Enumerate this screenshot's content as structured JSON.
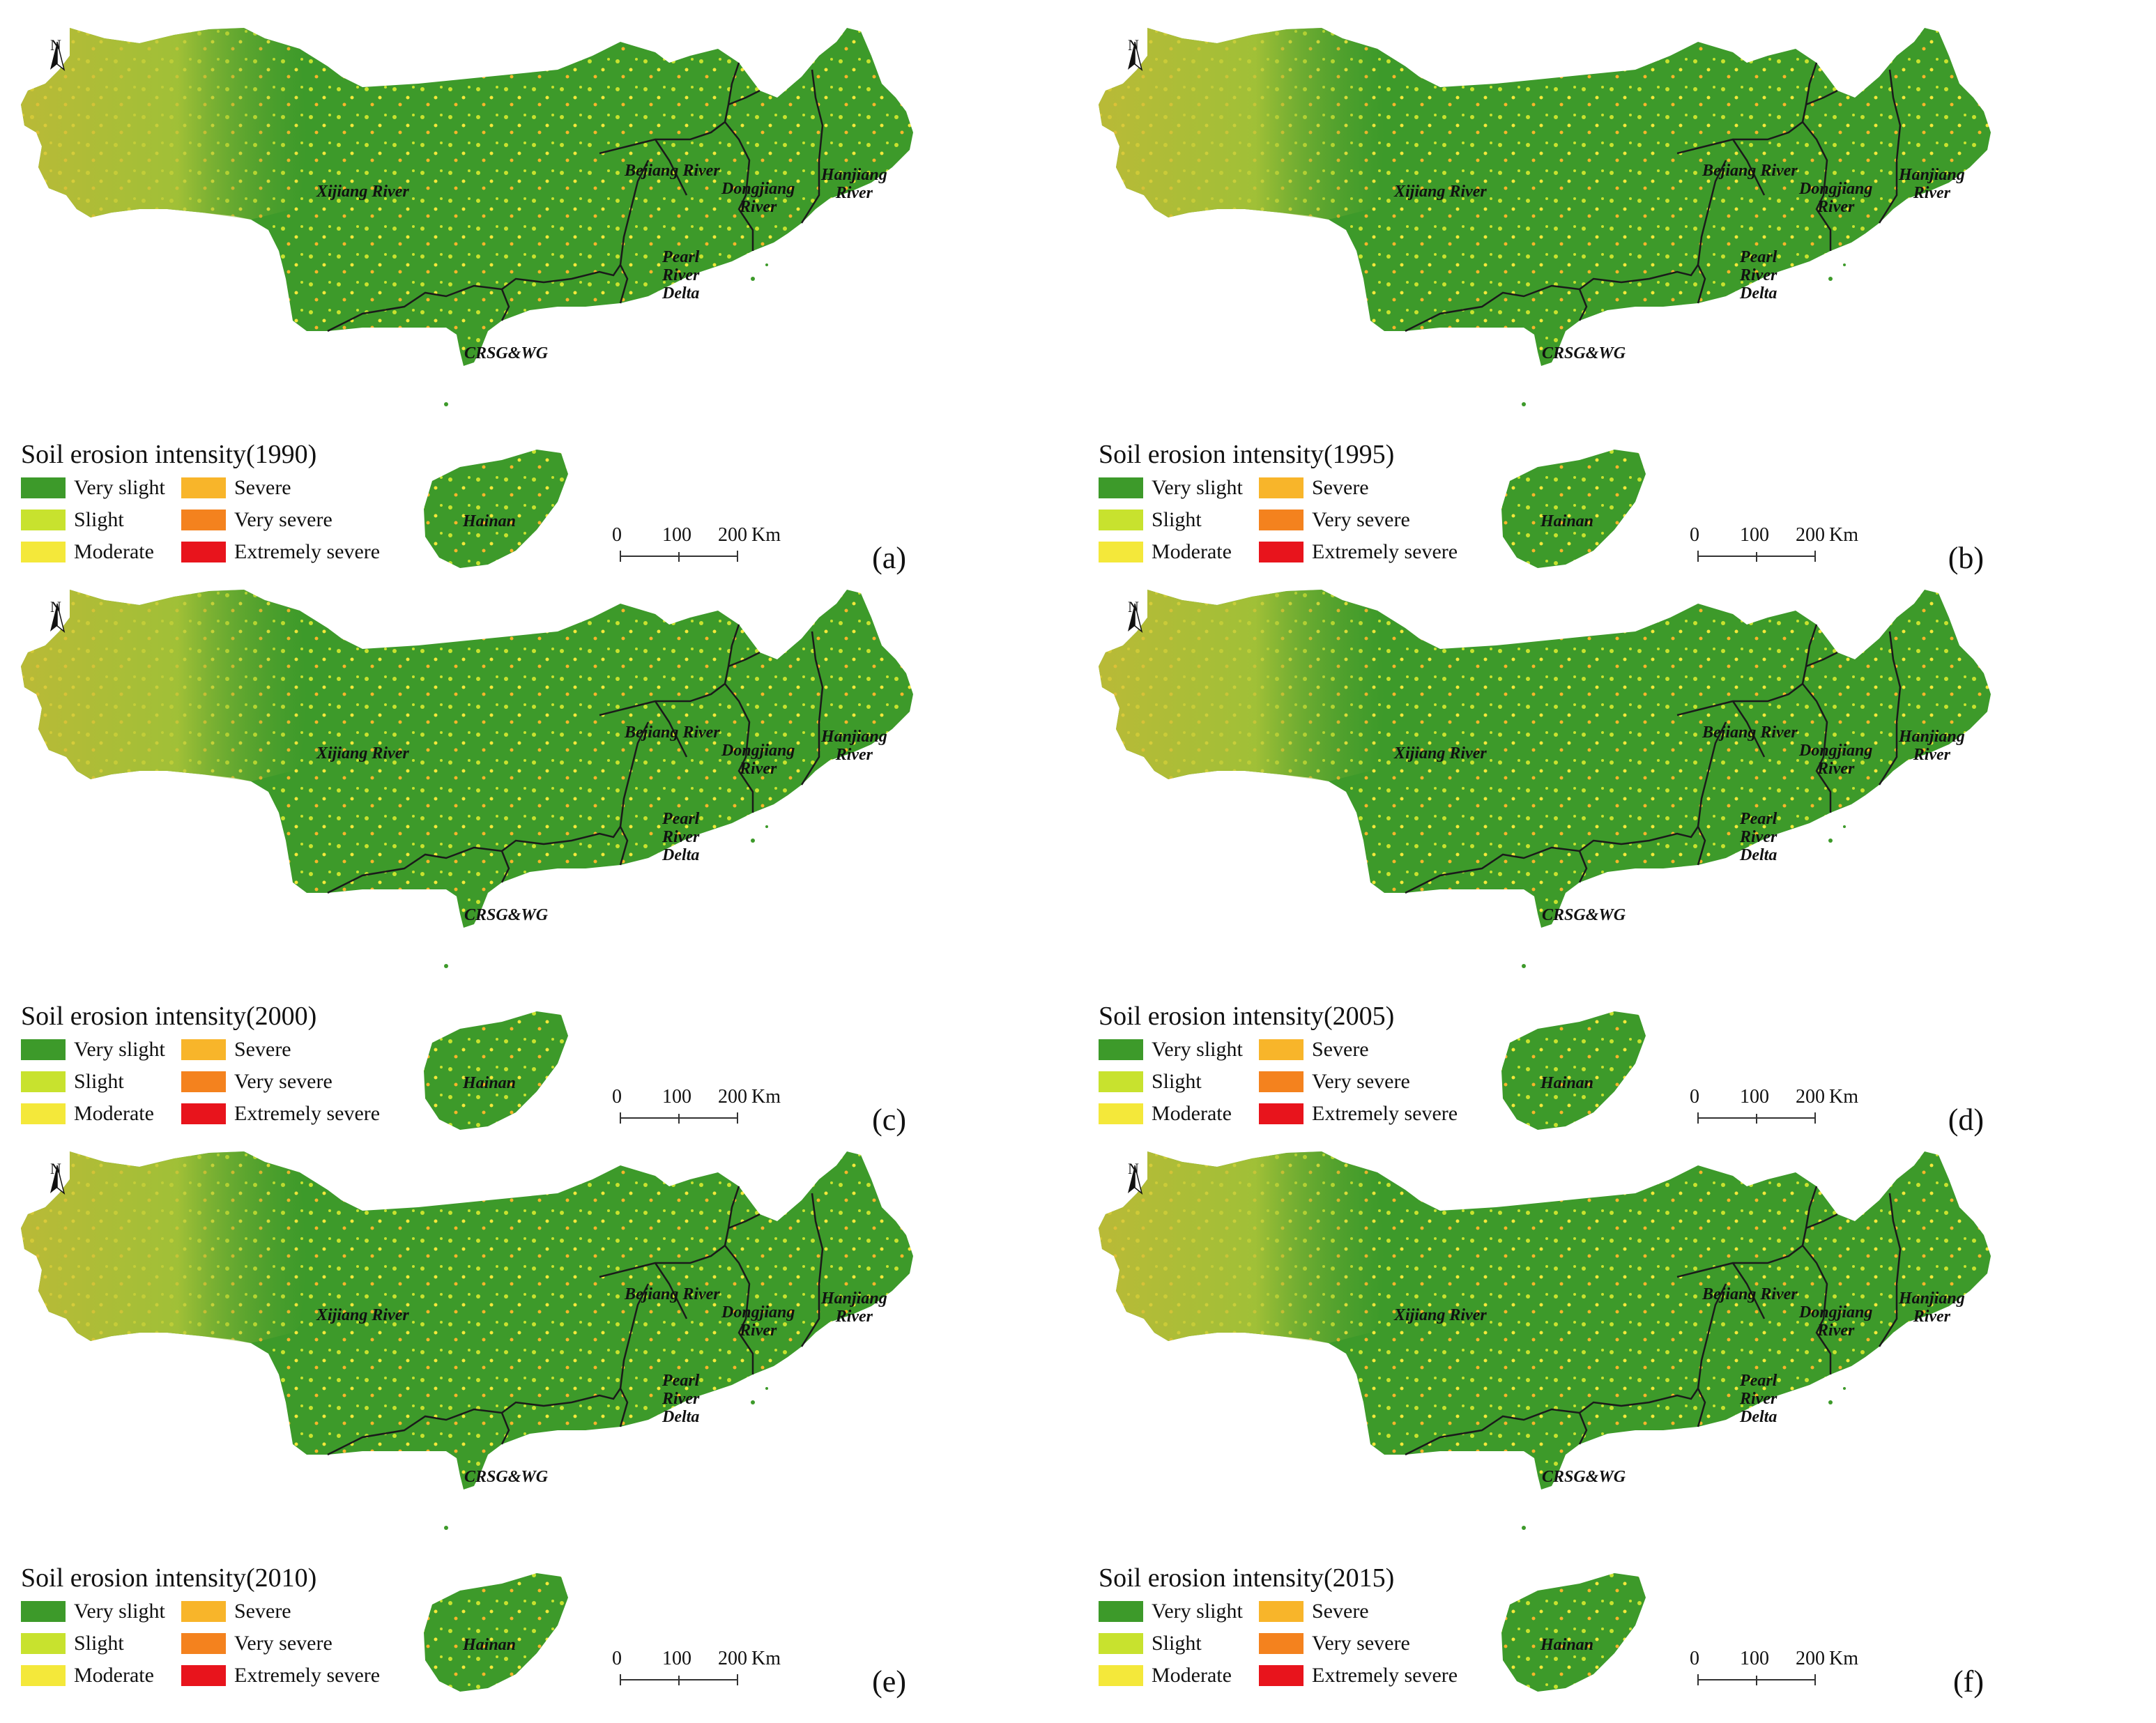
{
  "legend_classes": [
    {
      "label": "Very slight",
      "color": "#3d9a2a"
    },
    {
      "label": "Slight",
      "color": "#c8e22e"
    },
    {
      "label": "Moderate",
      "color": "#f4e83a"
    },
    {
      "label": "Severe",
      "color": "#f8b52a"
    },
    {
      "label": "Very severe",
      "color": "#f4821e"
    },
    {
      "label": "Extremely severe",
      "color": "#e8141c"
    }
  ],
  "regions": {
    "xijiang": "Xijiang River",
    "bejiang": "Bejiang River",
    "dongjiang": "Dongjiang\nRiver",
    "hanjiang": "Hanjiang\nRiver",
    "pearl": "Pearl\nRiver\nDelta",
    "crsg": "CRSG&WG",
    "hainan": "Hainan"
  },
  "north_label": "N",
  "scale": {
    "ticks": [
      "0",
      "100",
      "200"
    ],
    "unit": "Km"
  },
  "panels": [
    {
      "letter": "(a)",
      "title": "Soil erosion intensity(1990)"
    },
    {
      "letter": "(b)",
      "title": "Soil erosion intensity(1995)"
    },
    {
      "letter": "(c)",
      "title": "Soil erosion intensity(2000)"
    },
    {
      "letter": "(d)",
      "title": "Soil erosion intensity(2005)"
    },
    {
      "letter": "(e)",
      "title": "Soil erosion intensity(2010)"
    },
    {
      "letter": "(f)",
      "title": "Soil erosion intensity(2015)"
    }
  ]
}
